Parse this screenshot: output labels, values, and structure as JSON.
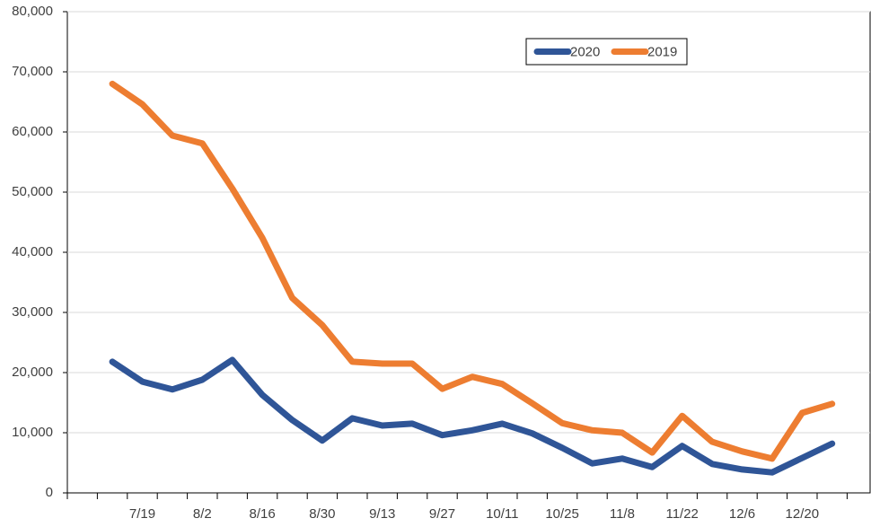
{
  "chart_data": {
    "type": "line",
    "categories": [
      null,
      null,
      "7/19",
      null,
      "8/2",
      null,
      "8/16",
      null,
      "8/30",
      null,
      "9/13",
      null,
      "9/27",
      null,
      "10/11",
      null,
      "10/25",
      null,
      "11/8",
      null,
      "11/22",
      null,
      "12/6",
      null,
      "12/20",
      null,
      null
    ],
    "series": [
      {
        "name": "2020",
        "color": "#2f5597",
        "values": [
          null,
          21800,
          18500,
          17200,
          18800,
          22100,
          16300,
          12100,
          8700,
          12400,
          11200,
          11500,
          9600,
          10400,
          11500,
          9900,
          7500,
          4900,
          5700,
          4300,
          7800,
          4800,
          3900,
          3400,
          5800,
          8200,
          null
        ]
      },
      {
        "name": "2019",
        "color": "#ed7d31",
        "values": [
          null,
          68000,
          64600,
          59400,
          58100,
          50600,
          42400,
          32400,
          27900,
          21800,
          21500,
          21500,
          17300,
          19300,
          18100,
          14900,
          11600,
          10400,
          10000,
          6700,
          12800,
          8500,
          6900,
          5700,
          13300,
          14800,
          null
        ]
      }
    ],
    "ylim": [
      0,
      80000
    ],
    "yticks": [
      0,
      {
        "value": 10000,
        "label": "10,000"
      },
      {
        "value": 20000,
        "label": "20,000"
      },
      {
        "value": 30000,
        "label": "30,000"
      },
      {
        "value": 40000,
        "label": "40,000"
      },
      {
        "value": 50000,
        "label": "50,000"
      },
      {
        "value": 60000,
        "label": "60,000"
      },
      {
        "value": 70000,
        "label": "70,000"
      },
      {
        "value": 80000,
        "label": "80,000"
      }
    ],
    "grid": true,
    "legend": "top-right"
  }
}
